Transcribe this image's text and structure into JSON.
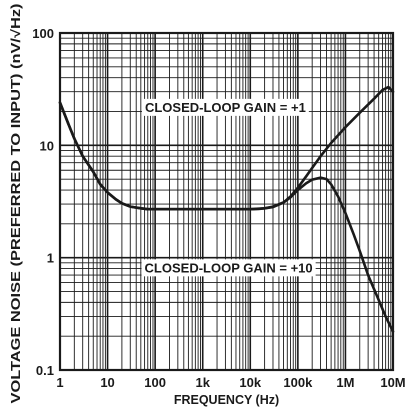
{
  "chart_data": {
    "type": "line",
    "xlabel": "FREQUENCY (Hz)",
    "ylabel": "VOLTAGE NOISE (PREFERRED TO INPUT) (nV/√Hz)",
    "x_scale": "log",
    "y_scale": "log",
    "xlim": [
      1,
      10000000
    ],
    "ylim": [
      0.1,
      100
    ],
    "grid": true,
    "x_ticks": [
      {
        "value": 1,
        "label": "1"
      },
      {
        "value": 10,
        "label": "10"
      },
      {
        "value": 100,
        "label": "100"
      },
      {
        "value": 1000,
        "label": "1k"
      },
      {
        "value": 10000,
        "label": "10k"
      },
      {
        "value": 100000,
        "label": "100k"
      },
      {
        "value": 1000000,
        "label": "1M"
      },
      {
        "value": 10000000,
        "label": "10M"
      }
    ],
    "y_ticks": [
      {
        "value": 0.1,
        "label": "0.1"
      },
      {
        "value": 1,
        "label": "1"
      },
      {
        "value": 10,
        "label": "10"
      },
      {
        "value": 100,
        "label": "100"
      }
    ],
    "annotations": [
      {
        "text": "CLOSED-LOOP GAIN = +1",
        "x": 3000,
        "y": 22
      },
      {
        "text": "CLOSED-LOOP GAIN = +10",
        "x": 3500,
        "y": 0.82
      }
    ],
    "series": [
      {
        "x": [
          1,
          1.5,
          2,
          3,
          5,
          7,
          10,
          15,
          20,
          30,
          50,
          70,
          100,
          200,
          500,
          1000,
          2000,
          5000,
          10000,
          15000,
          20000,
          30000,
          50000,
          70000,
          100000,
          150000,
          200000,
          300000,
          500000,
          1000000,
          2000000,
          4000000,
          6000000,
          8000000,
          10000000
        ],
        "y": [
          24,
          15.5,
          11.5,
          8,
          5.8,
          4.5,
          3.8,
          3.3,
          3.05,
          2.85,
          2.75,
          2.7,
          2.7,
          2.7,
          2.7,
          2.7,
          2.7,
          2.7,
          2.7,
          2.72,
          2.75,
          2.85,
          3.1,
          3.5,
          4.2,
          5.3,
          6.3,
          8,
          10.5,
          14.5,
          19.5,
          26,
          31,
          33,
          30
        ]
      },
      {
        "x": [
          1,
          1.5,
          2,
          3,
          5,
          7,
          10,
          15,
          20,
          30,
          50,
          70,
          100,
          200,
          500,
          1000,
          2000,
          5000,
          10000,
          20000,
          30000,
          50000,
          70000,
          100000,
          150000,
          200000,
          300000,
          400000,
          500000,
          700000,
          1000000,
          1500000,
          2000000,
          3000000,
          5000000,
          7000000,
          10000000
        ],
        "y": [
          24,
          15.5,
          11.5,
          8,
          5.8,
          4.5,
          3.8,
          3.3,
          3.05,
          2.85,
          2.75,
          2.7,
          2.7,
          2.7,
          2.7,
          2.7,
          2.7,
          2.7,
          2.7,
          2.75,
          2.82,
          3.1,
          3.45,
          4,
          4.6,
          4.95,
          5.15,
          5,
          4.5,
          3.5,
          2.5,
          1.6,
          1.15,
          0.7,
          0.42,
          0.3,
          0.22
        ]
      }
    ]
  }
}
